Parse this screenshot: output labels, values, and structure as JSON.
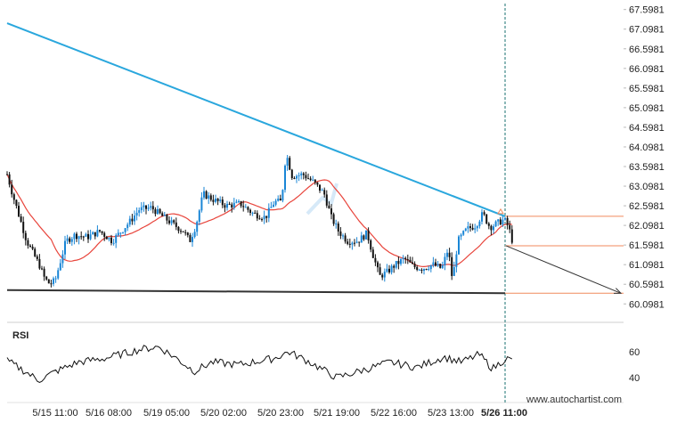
{
  "chart_data": {
    "type": "candlestick",
    "price_axis": {
      "ticks": [
        "67.5981",
        "67.0981",
        "66.5981",
        "66.0981",
        "65.5981",
        "65.0981",
        "64.5981",
        "64.0981",
        "63.5981",
        "63.0981",
        "62.5981",
        "62.0981",
        "61.5981",
        "61.0981",
        "60.5981",
        "60.0981"
      ],
      "ylim": [
        59.9,
        67.75
      ]
    },
    "x_axis": {
      "ticks": [
        "5/15 11:00",
        "5/16 08:00",
        "5/19 05:00",
        "5/20 02:00",
        "5/20 23:00",
        "5/21 19:00",
        "5/22 16:00",
        "5/23 13:00",
        "5/26 11:00"
      ],
      "highlight_tick": "5/26 11:00"
    },
    "rsi": {
      "label": "RSI",
      "ticks": [
        "60",
        "40"
      ],
      "ylim": [
        25,
        80
      ]
    },
    "pattern": {
      "name": "Descending Triangle",
      "resistance": {
        "start": 67.25,
        "end": 62.33
      },
      "support": {
        "start": 60.45,
        "end": 60.37
      },
      "forecast_target": 60.37,
      "breakout_level": 61.58,
      "upper_level": 62.33
    },
    "colors": {
      "up": "#1a86d6",
      "down": "#111111",
      "ma": "#e8453c",
      "resistance": "#2aa7dd",
      "support": "#333333",
      "forecast": "#333333",
      "levels": "#f08a5d",
      "current_time": "#1a7070"
    }
  },
  "footer": {
    "url": "www.autochartist.com"
  }
}
